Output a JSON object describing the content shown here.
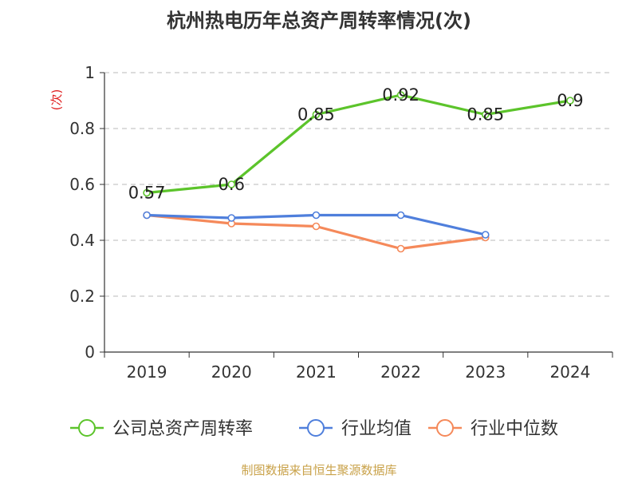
{
  "chart_data": {
    "type": "line",
    "title": "杭州热电历年总资产周转率情况(次)",
    "ylabel": "(次)",
    "xlabel": "",
    "categories": [
      "2019",
      "2020",
      "2021",
      "2022",
      "2023",
      "2024"
    ],
    "ylim": [
      0,
      1
    ],
    "yticks": [
      "0",
      "0.2",
      "0.4",
      "0.6",
      "0.8",
      "1"
    ],
    "grid": true,
    "legend_position": "bottom",
    "series": [
      {
        "name": "公司总资产周转率",
        "color": "#5cc42b",
        "values": [
          0.57,
          0.6,
          0.85,
          0.92,
          0.85,
          0.9
        ],
        "labels": [
          "0.57",
          "0.6",
          "0.85",
          "0.92",
          "0.85",
          "0.9"
        ]
      },
      {
        "name": "行业均值",
        "color": "#4f7fdc",
        "values": [
          0.49,
          0.48,
          0.49,
          0.49,
          0.42,
          null
        ]
      },
      {
        "name": "行业中位数",
        "color": "#f5895a",
        "values": [
          0.49,
          0.46,
          0.45,
          0.37,
          0.41,
          null
        ]
      }
    ]
  },
  "footer": {
    "source": "制图数据来自恒生聚源数据库"
  }
}
